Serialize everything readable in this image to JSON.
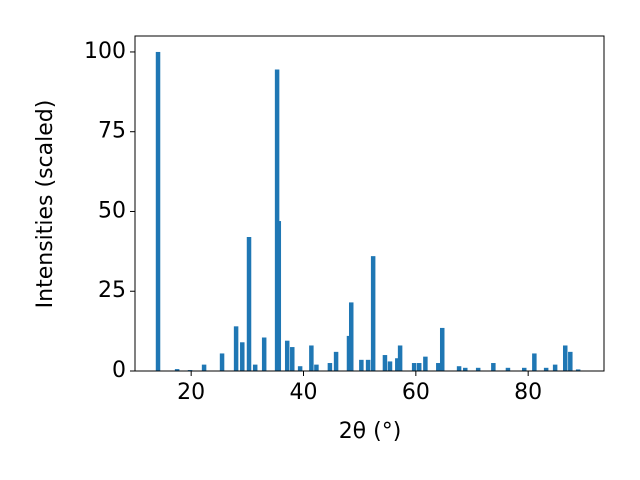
{
  "chart_data": {
    "type": "bar",
    "xlabel": "2θ (°)",
    "ylabel": "Intensities (scaled)",
    "color": "#1f77b4",
    "x": [
      14.1,
      17.5,
      19.8,
      22.3,
      25.5,
      28.0,
      29.1,
      30.3,
      31.4,
      33.0,
      35.3,
      35.6,
      37.1,
      38.0,
      39.4,
      41.4,
      42.3,
      44.7,
      45.8,
      48.1,
      48.5,
      50.3,
      51.5,
      52.4,
      54.5,
      55.4,
      56.7,
      57.2,
      59.7,
      60.6,
      61.7,
      64.0,
      64.7,
      67.7,
      68.8,
      71.1,
      73.8,
      76.4,
      79.3,
      81.1,
      83.2,
      84.8,
      86.6,
      87.5,
      88.9
    ],
    "values": [
      100,
      0.6,
      0.3,
      2,
      5.5,
      14,
      9,
      42,
      2,
      10.5,
      94.5,
      47,
      9.5,
      7.5,
      1.5,
      8,
      2,
      2.5,
      6,
      11,
      21.5,
      3.5,
      3.5,
      36,
      5,
      3,
      4,
      8,
      2.5,
      2.5,
      4.5,
      2.5,
      13.5,
      1.5,
      1,
      1,
      2.5,
      1,
      1,
      5.5,
      1,
      2,
      8,
      6,
      0.5
    ],
    "xlim": [
      10,
      93.5
    ],
    "ylim": [
      0,
      105
    ],
    "xticks": [
      20,
      40,
      60,
      80
    ],
    "yticks": [
      0,
      25,
      50,
      75,
      100
    ]
  }
}
